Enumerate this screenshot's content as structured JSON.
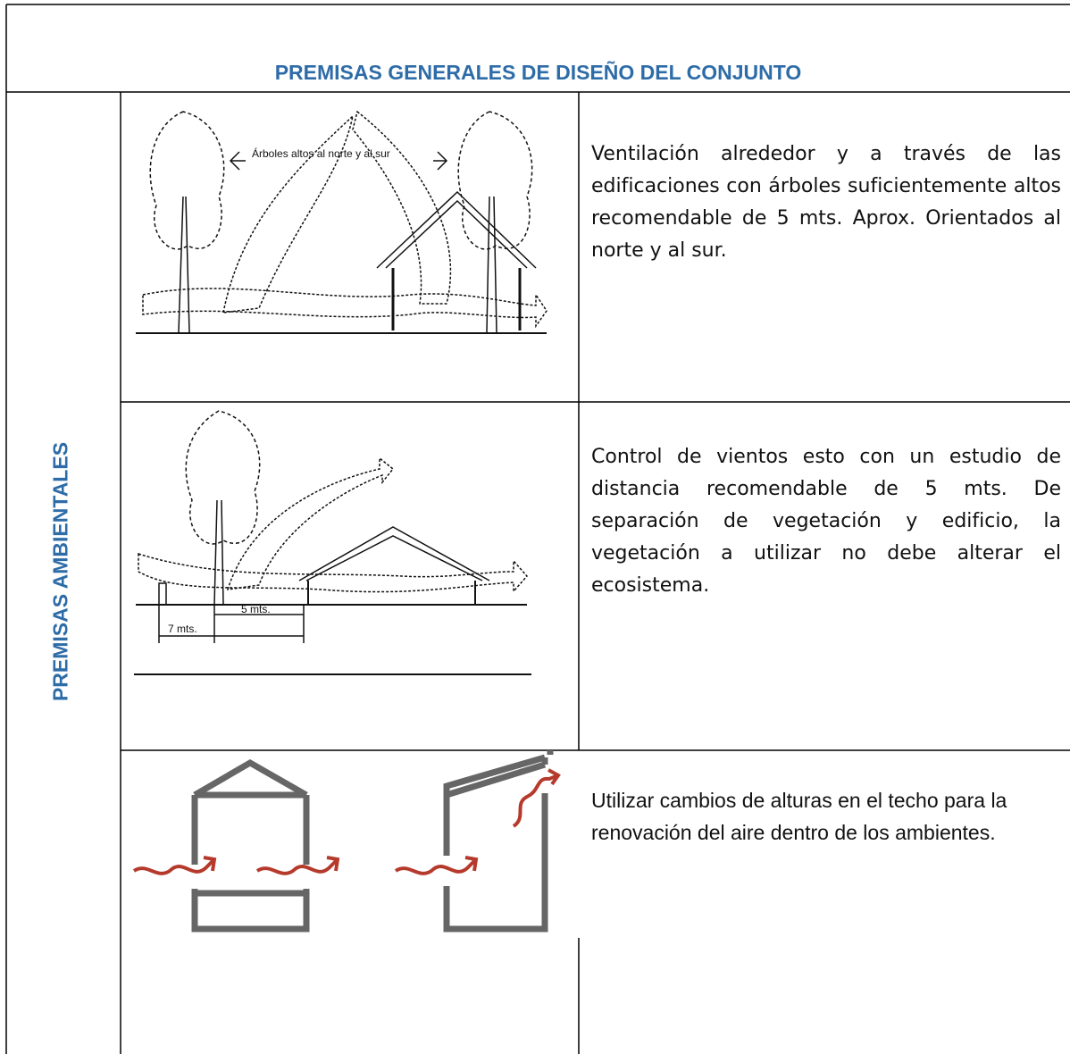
{
  "header": {
    "title": "PREMISAS GENERALES DE DISEÑO DEL CONJUNTO"
  },
  "side_label": "PREMISAS AMBIENTALES",
  "rows": [
    {
      "image_labels": [
        "Árboles altos al norte y al sur"
      ],
      "text": "Ventilación alrededor y a través de las edificaciones con árboles suficientemente altos recomendable de 5 mts. Aprox. Orientados al norte y al sur."
    },
    {
      "image_labels": [
        "5 mts.",
        "7 mts."
      ],
      "text": "Control de vientos esto con un estudio de distancia recomendable de 5 mts. De separación de vegetación y edificio, la vegetación a utilizar no debe alterar el ecosistema."
    },
    {
      "text": "Utilizar cambios de alturas en el techo para la renovación del aire dentro de los ambientes."
    }
  ]
}
